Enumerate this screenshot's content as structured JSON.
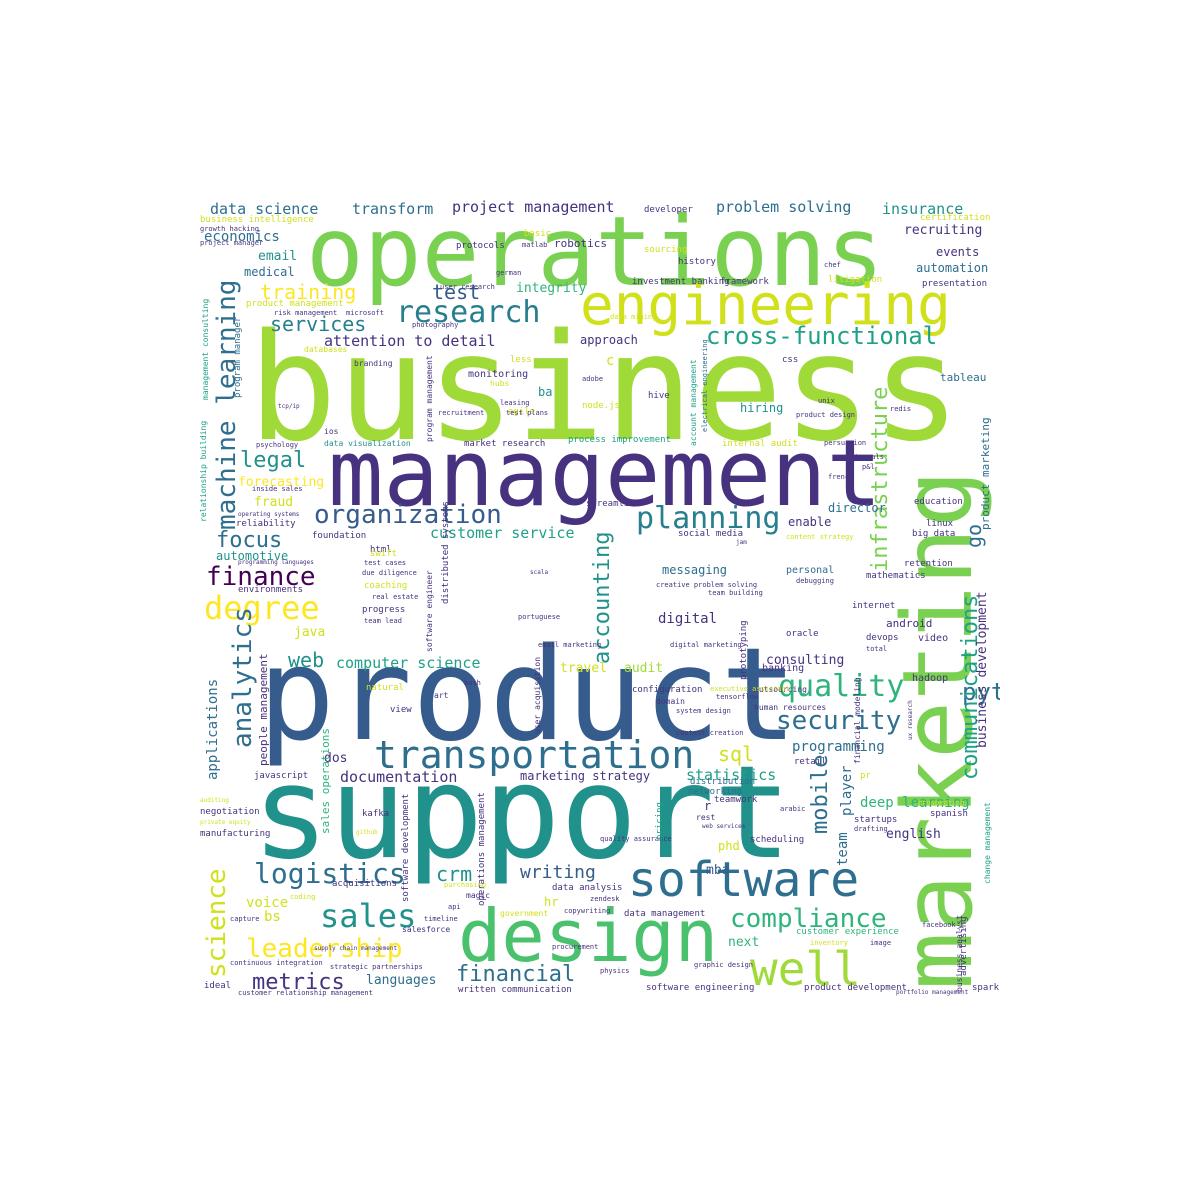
{
  "colors": {
    "c1": "#a0da39",
    "c2": "#7ad151",
    "c3": "#4ac16d",
    "c4": "#2fb47c",
    "c5": "#1fa187",
    "c6": "#21918c",
    "c7": "#277f8e",
    "c8": "#2e6e8e",
    "c9": "#365c8d",
    "c10": "#3f4788",
    "c11": "#46327e",
    "c12": "#440154",
    "c13": "#fde725",
    "c14": "#d0e11c"
  },
  "words": {
    "business": "business",
    "product": "product",
    "support": "support",
    "management": "management",
    "operations": "operations",
    "marketing": "marketing",
    "design": "design",
    "engineering": "engineering",
    "software": "software",
    "transportation": "transportation",
    "well": "well",
    "research": "research",
    "cross_functional": "cross-functional",
    "quality": "quality",
    "security": "security",
    "planning": "planning",
    "organization": "organization",
    "logistics": "logistics",
    "sales": "sales",
    "compliance": "compliance",
    "leadership": "leadership",
    "degree": "degree",
    "finance": "finance",
    "machine_learning": "machine learning",
    "analytics": "analytics",
    "infrastructure": "infrastructure",
    "accounting": "accounting",
    "communications": "communications",
    "python": "python",
    "services": "services",
    "legal": "legal",
    "focus": "focus",
    "web": "web",
    "metrics": "metrics",
    "financial": "financial",
    "training": "training",
    "test": "test",
    "attention_to_detail": "attention to detail",
    "customer_service": "customer service",
    "computer_science": "computer science",
    "science": "science",
    "documentation": "documentation",
    "programming": "programming",
    "statistics": "statistics",
    "sql": "sql",
    "mobile": "mobile",
    "deep_learning": "deep learning",
    "data_science": "data science",
    "transform": "transform",
    "project_management": "project management",
    "problem_solving": "problem solving",
    "insurance": "insurance",
    "economics": "economics",
    "recruiting": "recruiting",
    "email": "email",
    "medical": "medical",
    "events": "events",
    "automation": "automation",
    "approach": "approach",
    "integrity": "integrity",
    "robotics": "robotics",
    "hiring": "hiring",
    "tableau": "tableau",
    "monitoring": "monitoring",
    "director": "director",
    "enable": "enable",
    "messaging": "messaging",
    "digital": "digital",
    "personal": "personal",
    "android": "android",
    "consulting": "consulting",
    "travel": "travel",
    "audit": "audit",
    "hadoop": "hadoop",
    "video": "video",
    "banking": "banking",
    "crm": "crm",
    "writing": "writing",
    "english": "english",
    "voice": "voice",
    "bs": "bs",
    "languages": "languages",
    "mba": "mba",
    "next": "next",
    "phd": "phd",
    "hr": "hr",
    "dos": "dos",
    "java": "java",
    "fraud": "fraud",
    "forecasting": "forecasting",
    "automotive": "automotive",
    "go": "go",
    "ba": "ba",
    "c": "c",
    "mathematics": "mathematics",
    "investment_banking": "investment banking",
    "framework": "framework",
    "teamwork": "teamwork",
    "networking": "networking",
    "distribution": "distribution",
    "scheduling": "scheduling",
    "spanish": "spanish",
    "manufacturing": "manufacturing",
    "negotiation": "negotiation",
    "javascript": "javascript",
    "kafka": "kafka",
    "reliability": "reliability",
    "foundation": "foundation",
    "html": "html",
    "progress": "progress",
    "internet": "internet",
    "oracle": "oracle",
    "devops": "devops",
    "retention": "retention",
    "linux": "linux",
    "big_data": "big data",
    "education": "education",
    "presentation": "presentation",
    "litigation": "litigation",
    "sourcing": "sourcing",
    "history": "history",
    "developer": "developer",
    "certification": "certification",
    "business_intelligence": "business intelligence",
    "product_management": "product management",
    "risk_management": "risk management",
    "photography": "photography",
    "hubs": "hubs",
    "agile": "agile",
    "less": "less",
    "hive": "hive",
    "redis": "redis",
    "css": "css",
    "process_improvement": "process improvement",
    "market_research": "market research",
    "internal_audit": "internal audit",
    "persuasion": "persuasion",
    "internals": "internals",
    "french": "french",
    "streamline": "streamline",
    "social_media": "social media",
    "data_visualization": "data visualization",
    "ios": "ios",
    "psychology": "psychology",
    "inside_sales": "inside sales",
    "operating_systems": "operating systems",
    "environments": "environments",
    "programming_languages": "programming languages",
    "due_diligence": "due diligence",
    "real_estate": "real estate",
    "team_lead": "team lead",
    "coaching": "coaching",
    "swift": "swift",
    "test_cases": "test cases",
    "creative_problem_solving": "creative problem solving",
    "team_building": "team building",
    "debugging": "debugging",
    "content_strategy": "content strategy",
    "marketing_strategy": "marketing strategy",
    "acquisitions": "acquisitions",
    "data_analysis": "data analysis",
    "zendesk": "zendesk",
    "data_management": "data management",
    "copywriting": "copywriting",
    "government": "government",
    "salesforce": "salesforce",
    "timeline": "timeline",
    "capture": "capture",
    "coding": "coding",
    "magic": "magic",
    "api": "api",
    "purchasing": "purchasing",
    "quality_assurance": "quality assurance",
    "continuous_integration": "continuous integration",
    "strategic_partnerships": "strategic partnerships",
    "customer_relationship_management": "customer relationship management",
    "ideal": "ideal",
    "written_communication": "written communication",
    "software_engineering": "software engineering",
    "product_development": "product development",
    "portfolio_management": "portfolio management",
    "spark": "spark",
    "procurement": "procurement",
    "physics": "physics",
    "graphic_design": "graphic design",
    "customer_experience": "customer experience",
    "inventory": "inventory",
    "image": "image",
    "facebook": "facebook",
    "advertising": "advertising",
    "business_analyst": "business analyst",
    "web_services": "web services",
    "rest": "rest",
    "r": "r",
    "startups": "startups",
    "drafting": "drafting",
    "prospecting": "prospecting",
    "arabic": "arabic",
    "pricing": "pricing",
    "team": "team",
    "player": "player",
    "retail": "retail",
    "people_management": "people management",
    "applications": "applications",
    "sales_operations": "sales operations",
    "human_resources": "human resources",
    "outsourcing": "outsourcing",
    "tensorflow": "tensorflow",
    "configuration": "configuration",
    "domain": "domain",
    "view": "view",
    "natural": "natural",
    "art": "art",
    "ux_research": "ux research",
    "financial_modeling": "financial modeling",
    "content_creation": "content creation",
    "system_design": "system design",
    "executive_assistant": "executive assistant",
    "digital_marketing": "digital marketing",
    "email_marketing": "email marketing",
    "user_acquisition": "user acquisition",
    "prototyping": "prototyping",
    "software_engineer": "software engineer",
    "distributed_systems": "distributed systems",
    "operations_management": "operations management",
    "software_development": "software development",
    "business_development": "business development",
    "product_marketing": "product marketing",
    "change_management": "change management",
    "account_management": "account management",
    "electrical_engineering": "electrical engineering",
    "program_management": "program management",
    "program_manager": "program manager",
    "relationship_building": "relationship building",
    "management_consulting": "management consulting",
    "growth_hacking": "growth hacking",
    "project_manager": "project manager",
    "databases": "databases",
    "branding": "branding",
    "node_js": "node.js",
    "adobe": "adobe",
    "basic": "basic",
    "protocols": "protocols",
    "matlab": "matlab",
    "german": "german",
    "user_research": "user research",
    "microsoft": "microsoft",
    "data_mining": "data mining",
    "approach_small": "leasing",
    "test_plans": "test plans",
    "recruitment": "recruitment",
    "chef": "chef",
    "unix": "unix",
    "product_design": "product design",
    "portuguese": "portuguese",
    "scala": "scala",
    "gitHub": "github",
    "p_and_l": "p&l",
    "jam": "jam",
    "tcpip": "tcp/ip",
    "bash": "bash",
    "auditing": "auditing",
    "total": "total",
    "private_equity": "private equity",
    "supply_chain_management": "supply chain management",
    "pr": "pr"
  }
}
